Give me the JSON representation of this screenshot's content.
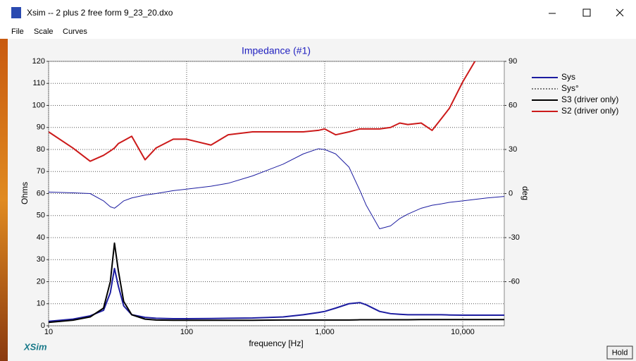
{
  "window": {
    "title": "Xsim -- 2 plus 2 free form 9_23_20.dxo"
  },
  "menu": [
    "File",
    "Scale",
    "Curves"
  ],
  "logo": "XSim",
  "hold_button": "Hold",
  "chart_data": {
    "type": "line",
    "title": "Impedance (#1)",
    "x_label": "frequency [Hz]",
    "y_label": "Ohms",
    "y2_label": "deg",
    "log_x": true,
    "grid": true,
    "legend": "right",
    "xlim": [
      10,
      20000
    ],
    "xticks": [
      10,
      100,
      {
        "value": 1000,
        "label": "1,000"
      },
      {
        "value": 10000,
        "label": "10,000"
      }
    ],
    "ylim": [
      0,
      120
    ],
    "yticks": [
      0,
      10,
      20,
      30,
      40,
      50,
      60,
      70,
      80,
      90,
      100,
      110,
      120
    ],
    "y2lim": [
      -90,
      90
    ],
    "y2ticks": [
      -60,
      -30,
      0,
      30,
      60,
      90
    ],
    "x": [
      10,
      15,
      20,
      25,
      28,
      30,
      32,
      35,
      40,
      50,
      60,
      80,
      100,
      150,
      200,
      300,
      500,
      700,
      900,
      1000,
      1200,
      1500,
      1800,
      2000,
      2500,
      3000,
      3500,
      4000,
      5000,
      6000,
      7000,
      8000,
      10000,
      15000,
      20000
    ],
    "series": [
      {
        "name": "Sys",
        "color": "#1c1ca0",
        "width": 2,
        "values": [
          2,
          3,
          4.5,
          7,
          15,
          26,
          18,
          9,
          5,
          3.8,
          3.4,
          3.2,
          3.2,
          3.3,
          3.4,
          3.5,
          4,
          5,
          6,
          6.5,
          8,
          10,
          10.5,
          9.5,
          6.5,
          5.5,
          5.2,
          5,
          5,
          5,
          5,
          4.9,
          4.8,
          4.8,
          4.8
        ]
      },
      {
        "name": "Sys°",
        "color": "#1c1ca0",
        "dashed": true,
        "axis": "y2",
        "width": 1,
        "values": [
          1,
          0.5,
          0,
          -5,
          -9,
          -10,
          -8,
          -5,
          -3,
          -1,
          0,
          2,
          3,
          5,
          7,
          12,
          20,
          27,
          30.5,
          30,
          27,
          18,
          2,
          -8,
          -24,
          -22,
          -17,
          -14,
          -10,
          -8,
          -7,
          -6,
          -5,
          -3,
          -2
        ]
      },
      {
        "name": "S3 (driver only)",
        "color": "#000000",
        "width": 2,
        "values": [
          1.5,
          2.5,
          4,
          8,
          20,
          37.5,
          25,
          11,
          5,
          3,
          2.6,
          2.5,
          2.5,
          2.5,
          2.5,
          2.5,
          2.6,
          2.6,
          2.6,
          2.6,
          2.6,
          2.6,
          2.7,
          2.7,
          2.7,
          2.7,
          2.7,
          2.7,
          2.8,
          2.8,
          2.8,
          2.8,
          2.8,
          2.8,
          2.8
        ]
      },
      {
        "name": "S2 (driver only)",
        "color": "#cc1a1a",
        "axis": "y2",
        "width": 2,
        "values": [
          42,
          31,
          22,
          26,
          29,
          31,
          34,
          36,
          39,
          23,
          31,
          37,
          37,
          33,
          40,
          42,
          42,
          42,
          43,
          44,
          40,
          42,
          44,
          44,
          44,
          45,
          48,
          47,
          48,
          43,
          51,
          58,
          76,
          104,
          115
        ]
      }
    ]
  }
}
